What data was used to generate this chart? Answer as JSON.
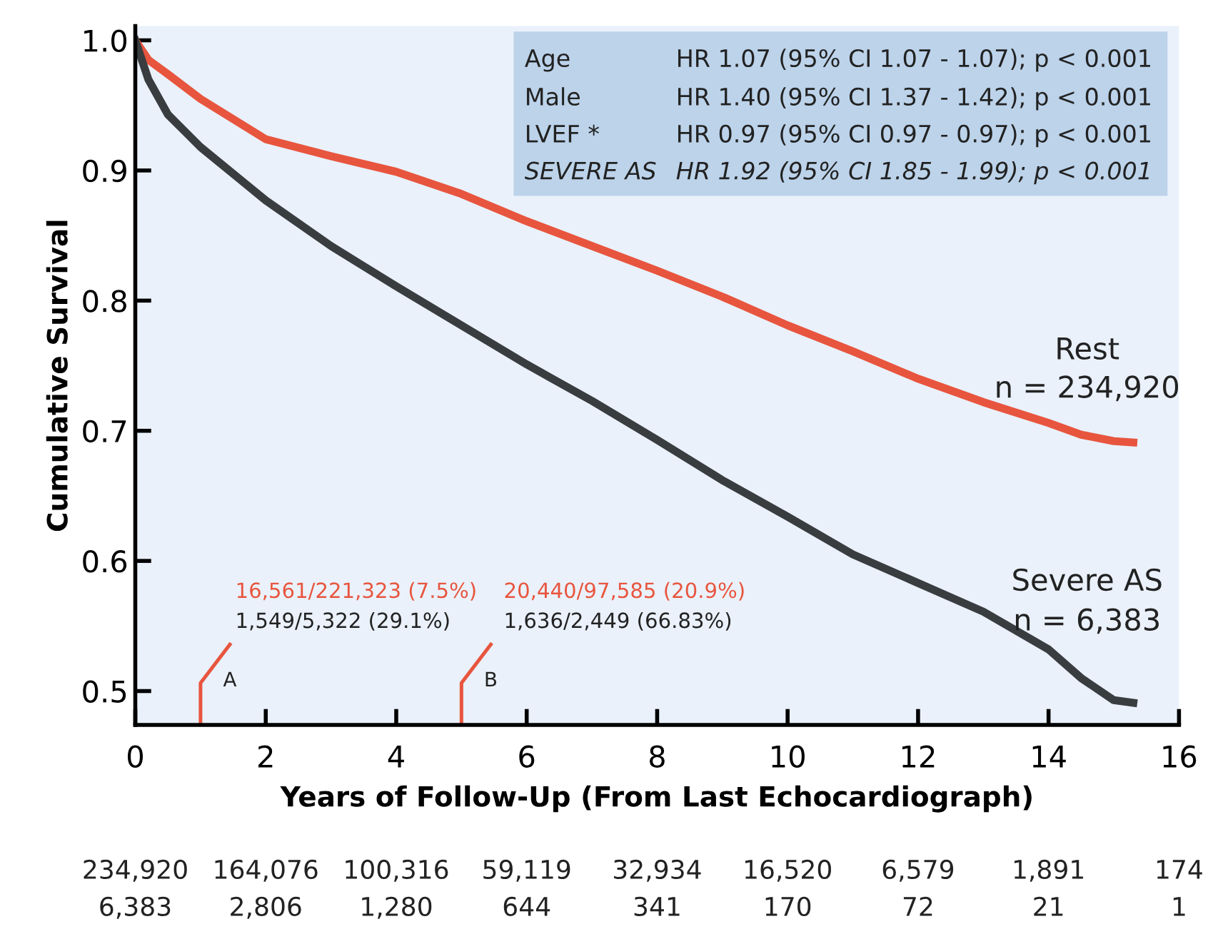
{
  "chart_data": {
    "type": "line",
    "xlabel": "Years of Follow-Up (From Last Echocardiograph)",
    "ylabel": "Cumulative Survival",
    "xlim": [
      0,
      16
    ],
    "xticks": [
      0,
      2,
      4,
      6,
      8,
      10,
      12,
      14,
      16
    ],
    "ylim": [
      0.474,
      1.011
    ],
    "yticks": [
      {
        "value": 0.5,
        "label": "0.5"
      },
      {
        "value": 0.6,
        "label": "0.6"
      },
      {
        "value": 0.7,
        "label": "0.7"
      },
      {
        "value": 0.8,
        "label": "0.8"
      },
      {
        "value": 0.9,
        "label": "0.9"
      },
      {
        "value": 1.0,
        "label": "1.0"
      }
    ],
    "grid": false,
    "legend": false,
    "marker": "none",
    "line_style": "solid",
    "series": [
      {
        "name": "Rest",
        "color": "#e8553e",
        "x": [
          0,
          0.2,
          0.5,
          1,
          2,
          3,
          4,
          5,
          6,
          7,
          8,
          9,
          10,
          11,
          12,
          13,
          14,
          14.5,
          15,
          15.3
        ],
        "values": [
          1.0,
          0.985,
          0.974,
          0.955,
          0.924,
          0.911,
          0.899,
          0.882,
          0.861,
          0.842,
          0.823,
          0.803,
          0.781,
          0.761,
          0.74,
          0.722,
          0.706,
          0.697,
          0.692,
          0.691
        ]
      },
      {
        "name": "Severe AS",
        "color": "#3a3d40",
        "x": [
          0,
          0.2,
          0.5,
          1,
          2,
          3,
          4,
          5,
          6,
          7,
          8,
          9,
          10,
          11,
          12,
          13,
          14,
          14.5,
          15,
          15.3
        ],
        "values": [
          1.0,
          0.97,
          0.943,
          0.918,
          0.877,
          0.842,
          0.811,
          0.781,
          0.751,
          0.723,
          0.693,
          0.662,
          0.634,
          0.605,
          0.583,
          0.561,
          0.532,
          0.51,
          0.493,
          0.491
        ]
      }
    ],
    "ref_lines": [
      {
        "axis": "x",
        "value": 1,
        "label": "A",
        "color": "#e8553e"
      },
      {
        "axis": "x",
        "value": 5,
        "label": "B",
        "color": "#e8553e"
      }
    ],
    "annotations": [
      "Age",
      "HR 1.07 (95% CI 1.07 - 1.07); p < 0.001",
      "Male",
      "HR 1.40 (95% CI 1.37 - 1.42); p < 0.001",
      "LVEF *",
      "HR 0.97 (95% CI 0.97 - 0.97); p < 0.001",
      "SEVERE AS",
      "HR 1.92 (95% CI 1.85 - 1.99); p < 0.001",
      "n = 234,920",
      "n = 6,383",
      "16,561/221,323 (7.5%)",
      "1,549/5,322 (29.1%)",
      "20,440/97,585 (20.9%)",
      "1,636/2,449 (66.83%)",
      "234,920",
      "164,076",
      "100,316",
      "59,119",
      "32,934",
      "16,520",
      "6,579",
      "1,891",
      "174",
      "6,383",
      "2,806",
      "1,280",
      "644",
      "341",
      "170",
      "72",
      "21",
      "1"
    ]
  }
}
